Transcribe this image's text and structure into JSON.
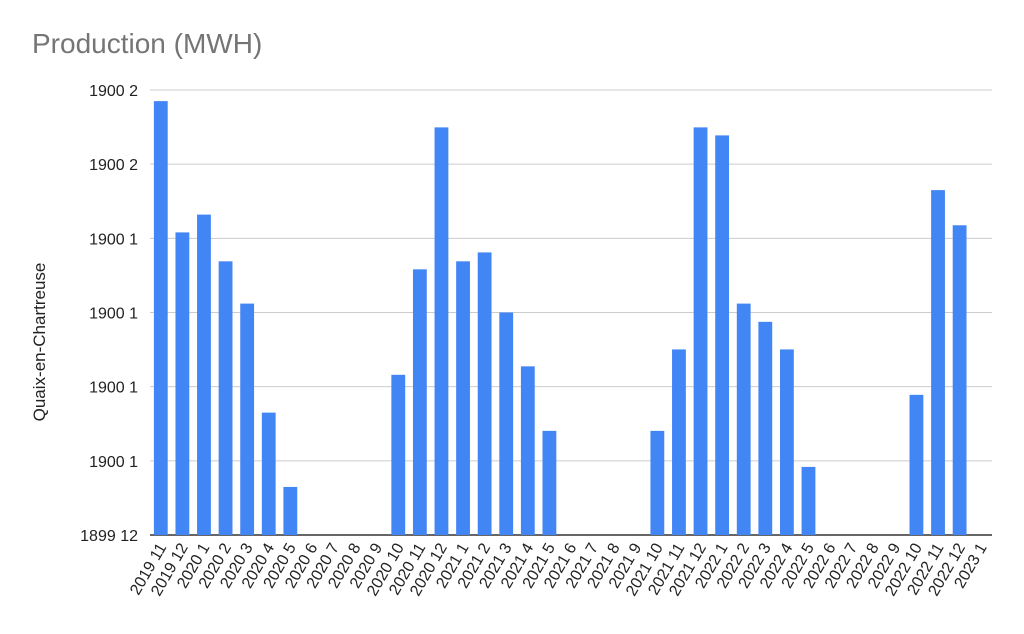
{
  "chart_data": {
    "type": "bar",
    "title": "Production (MWH)",
    "ylabel": "Quaix-en-Chartreuse",
    "xlabel": "",
    "yticks": [
      "1899 12",
      "1900 1",
      "1900 1",
      "1900 1",
      "1900 1",
      "1900 2",
      "1900 2"
    ],
    "ylim": [
      0,
      100
    ],
    "grid": true,
    "legend": "none",
    "colors": {
      "bar": "#4285f4",
      "grid": "#cccccc",
      "axis": "#333333"
    },
    "categories": [
      "2019 11",
      "2019 12",
      "2020 1",
      "2020 2",
      "2020 3",
      "2020 4",
      "2020 5",
      "2020 6",
      "2020 7",
      "2020 8",
      "2020 9",
      "2020 10",
      "2020 11",
      "2020 12",
      "2021 1",
      "2021 2",
      "2021 3",
      "2021 4",
      "2021 5",
      "2021 6",
      "2021 7",
      "2021 8",
      "2021 9",
      "2021 10",
      "2021 11",
      "2021 12",
      "2022 1",
      "2022 2",
      "2022 3",
      "2022 4",
      "2022 5",
      "2022 6",
      "2022 7",
      "2022 8",
      "2022 9",
      "2022 10",
      "2022 11",
      "2022 12",
      "2023 1"
    ],
    "values": [
      97.5,
      68,
      72,
      61.5,
      52,
      27.5,
      10.8,
      0,
      0,
      0,
      0,
      36,
      59.7,
      91.6,
      61.5,
      63.5,
      50,
      37.9,
      23.4,
      0,
      0,
      0,
      0,
      23.4,
      41.7,
      91.6,
      89.8,
      52,
      47.9,
      41.7,
      15.3,
      0,
      0,
      0,
      0,
      31.5,
      77.5,
      69.6,
      0
    ]
  }
}
